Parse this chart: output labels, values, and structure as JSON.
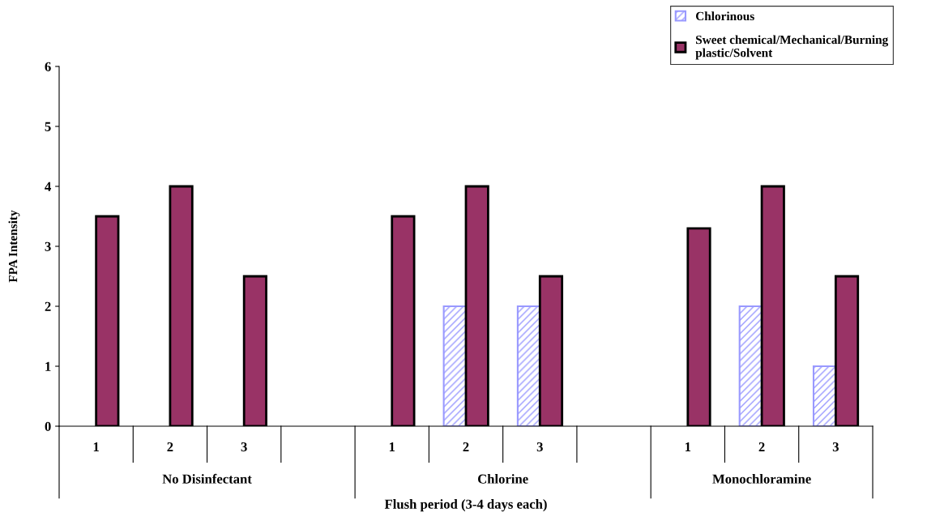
{
  "chart_data": {
    "type": "bar",
    "xlabel": "Flush period (3-4 days each)",
    "ylabel": "FPA Intensity",
    "categories": [
      "1",
      "2",
      "3",
      null,
      "1",
      "2",
      "3",
      null,
      "1",
      "2",
      "3"
    ],
    "series": [
      {
        "name": "Chlorinous",
        "color": "#9999ff",
        "values": [
          null,
          null,
          null,
          null,
          null,
          2,
          2,
          null,
          null,
          2,
          1
        ]
      },
      {
        "name": "Sweet chemical/Mechanical/Burning\nplastic/Solvent",
        "color": "#993366",
        "values": [
          3.5,
          4,
          2.5,
          null,
          3.5,
          4,
          2.5,
          null,
          3.3,
          4,
          2.5
        ]
      }
    ],
    "annotations": [
      "No Disinfectant",
      "Chlorine",
      "Monochloramine"
    ],
    "ylim": [
      0,
      6
    ],
    "yticks": [
      0,
      1,
      2,
      3,
      4,
      5,
      6
    ],
    "grid": false,
    "legend": "top right"
  }
}
